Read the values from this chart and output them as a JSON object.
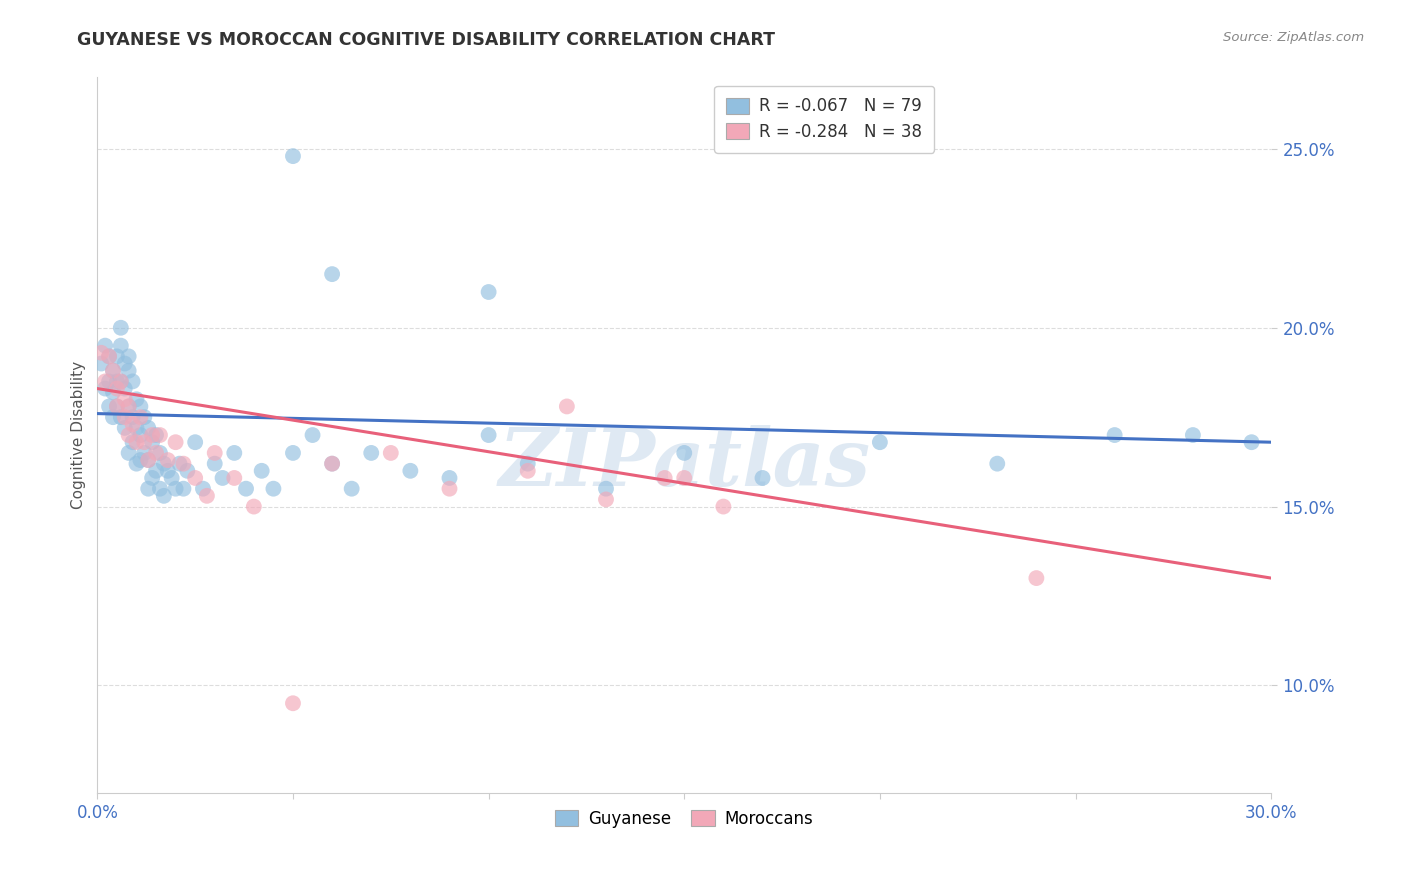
{
  "title": "GUYANESE VS MOROCCAN COGNITIVE DISABILITY CORRELATION CHART",
  "source": "Source: ZipAtlas.com",
  "ylabel": "Cognitive Disability",
  "xlim": [
    0.0,
    0.3
  ],
  "ylim": [
    0.07,
    0.27
  ],
  "yticks": [
    0.1,
    0.15,
    0.2,
    0.25
  ],
  "ytick_labels": [
    "10.0%",
    "15.0%",
    "20.0%",
    "25.0%"
  ],
  "xticks": [
    0.0,
    0.05,
    0.1,
    0.15,
    0.2,
    0.25,
    0.3
  ],
  "xtick_labels": [
    "0.0%",
    "",
    "",
    "",
    "",
    "",
    "30.0%"
  ],
  "legend_blue_r": "R = -0.067",
  "legend_blue_n": "N = 79",
  "legend_pink_r": "R = -0.284",
  "legend_pink_n": "N = 38",
  "blue_color": "#92bfdf",
  "pink_color": "#f2a8b8",
  "blue_line_color": "#4472c4",
  "pink_line_color": "#e8607a",
  "watermark": "ZIPatlas",
  "blue_scatter_x": [
    0.001,
    0.002,
    0.002,
    0.003,
    0.003,
    0.003,
    0.004,
    0.004,
    0.004,
    0.005,
    0.005,
    0.005,
    0.006,
    0.006,
    0.006,
    0.006,
    0.007,
    0.007,
    0.007,
    0.008,
    0.008,
    0.008,
    0.008,
    0.009,
    0.009,
    0.009,
    0.01,
    0.01,
    0.01,
    0.011,
    0.011,
    0.011,
    0.012,
    0.012,
    0.013,
    0.013,
    0.013,
    0.014,
    0.014,
    0.015,
    0.015,
    0.016,
    0.016,
    0.017,
    0.017,
    0.018,
    0.019,
    0.02,
    0.021,
    0.022,
    0.023,
    0.025,
    0.027,
    0.03,
    0.032,
    0.035,
    0.038,
    0.042,
    0.045,
    0.05,
    0.055,
    0.06,
    0.065,
    0.07,
    0.08,
    0.09,
    0.1,
    0.11,
    0.13,
    0.15,
    0.17,
    0.2,
    0.23,
    0.26,
    0.28,
    0.295,
    0.05,
    0.06,
    0.1
  ],
  "blue_scatter_y": [
    0.19,
    0.183,
    0.195,
    0.185,
    0.192,
    0.178,
    0.188,
    0.182,
    0.175,
    0.185,
    0.192,
    0.178,
    0.195,
    0.2,
    0.185,
    0.175,
    0.19,
    0.183,
    0.172,
    0.188,
    0.178,
    0.192,
    0.165,
    0.185,
    0.175,
    0.168,
    0.18,
    0.172,
    0.162,
    0.178,
    0.17,
    0.163,
    0.175,
    0.165,
    0.172,
    0.163,
    0.155,
    0.168,
    0.158,
    0.17,
    0.16,
    0.165,
    0.155,
    0.162,
    0.153,
    0.16,
    0.158,
    0.155,
    0.162,
    0.155,
    0.16,
    0.168,
    0.155,
    0.162,
    0.158,
    0.165,
    0.155,
    0.16,
    0.155,
    0.165,
    0.17,
    0.162,
    0.155,
    0.165,
    0.16,
    0.158,
    0.17,
    0.162,
    0.155,
    0.165,
    0.158,
    0.168,
    0.162,
    0.17,
    0.17,
    0.168,
    0.248,
    0.215,
    0.21
  ],
  "pink_scatter_x": [
    0.001,
    0.002,
    0.003,
    0.004,
    0.005,
    0.005,
    0.006,
    0.007,
    0.007,
    0.008,
    0.008,
    0.009,
    0.01,
    0.011,
    0.012,
    0.013,
    0.014,
    0.015,
    0.016,
    0.018,
    0.02,
    0.022,
    0.025,
    0.028,
    0.03,
    0.035,
    0.04,
    0.05,
    0.06,
    0.075,
    0.09,
    0.11,
    0.13,
    0.145,
    0.16,
    0.24,
    0.15,
    0.12
  ],
  "pink_scatter_y": [
    0.193,
    0.185,
    0.192,
    0.188,
    0.183,
    0.178,
    0.185,
    0.18,
    0.175,
    0.178,
    0.17,
    0.173,
    0.168,
    0.175,
    0.168,
    0.163,
    0.17,
    0.165,
    0.17,
    0.163,
    0.168,
    0.162,
    0.158,
    0.153,
    0.165,
    0.158,
    0.15,
    0.095,
    0.162,
    0.165,
    0.155,
    0.16,
    0.152,
    0.158,
    0.15,
    0.13,
    0.158,
    0.178
  ],
  "blue_trend_x": [
    0.0,
    0.3
  ],
  "blue_trend_y": [
    0.176,
    0.168
  ],
  "pink_trend_x": [
    0.0,
    0.3
  ],
  "pink_trend_y": [
    0.183,
    0.13
  ]
}
